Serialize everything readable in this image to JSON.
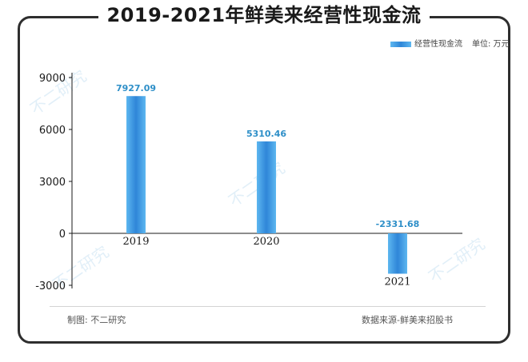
{
  "title": "2019-2021年鲜美来经营性现金流",
  "legend": {
    "series_label": "经营性现金流",
    "unit_label": "单位: 万元"
  },
  "footer": {
    "credit": "制图: 不二研究",
    "source": "数据来源-鲜美来招股书"
  },
  "watermark_text": "不二研究",
  "colors": {
    "bar_light": "#5db7f0",
    "bar_dark": "#2f86d8",
    "value_label": "#2e8fc8",
    "axis": "#1a1a1a"
  },
  "chart_data": {
    "type": "bar",
    "title": "2019-2021年鲜美来经营性现金流",
    "categories": [
      "2019",
      "2020",
      "2021"
    ],
    "series": [
      {
        "name": "经营性现金流",
        "values": [
          7927.09,
          5310.46,
          -2331.68
        ]
      }
    ],
    "value_labels": [
      "7927.09",
      "5310.46",
      "-2331.68"
    ],
    "yticks": [
      9000,
      6000,
      3000,
      0,
      -3000
    ],
    "ytick_labels": [
      "9000",
      "6000",
      "3000",
      "0",
      "-3000"
    ],
    "ylim": [
      -3000,
      9000
    ],
    "unit": "万元",
    "legend_position": "top-right",
    "grid": false
  }
}
